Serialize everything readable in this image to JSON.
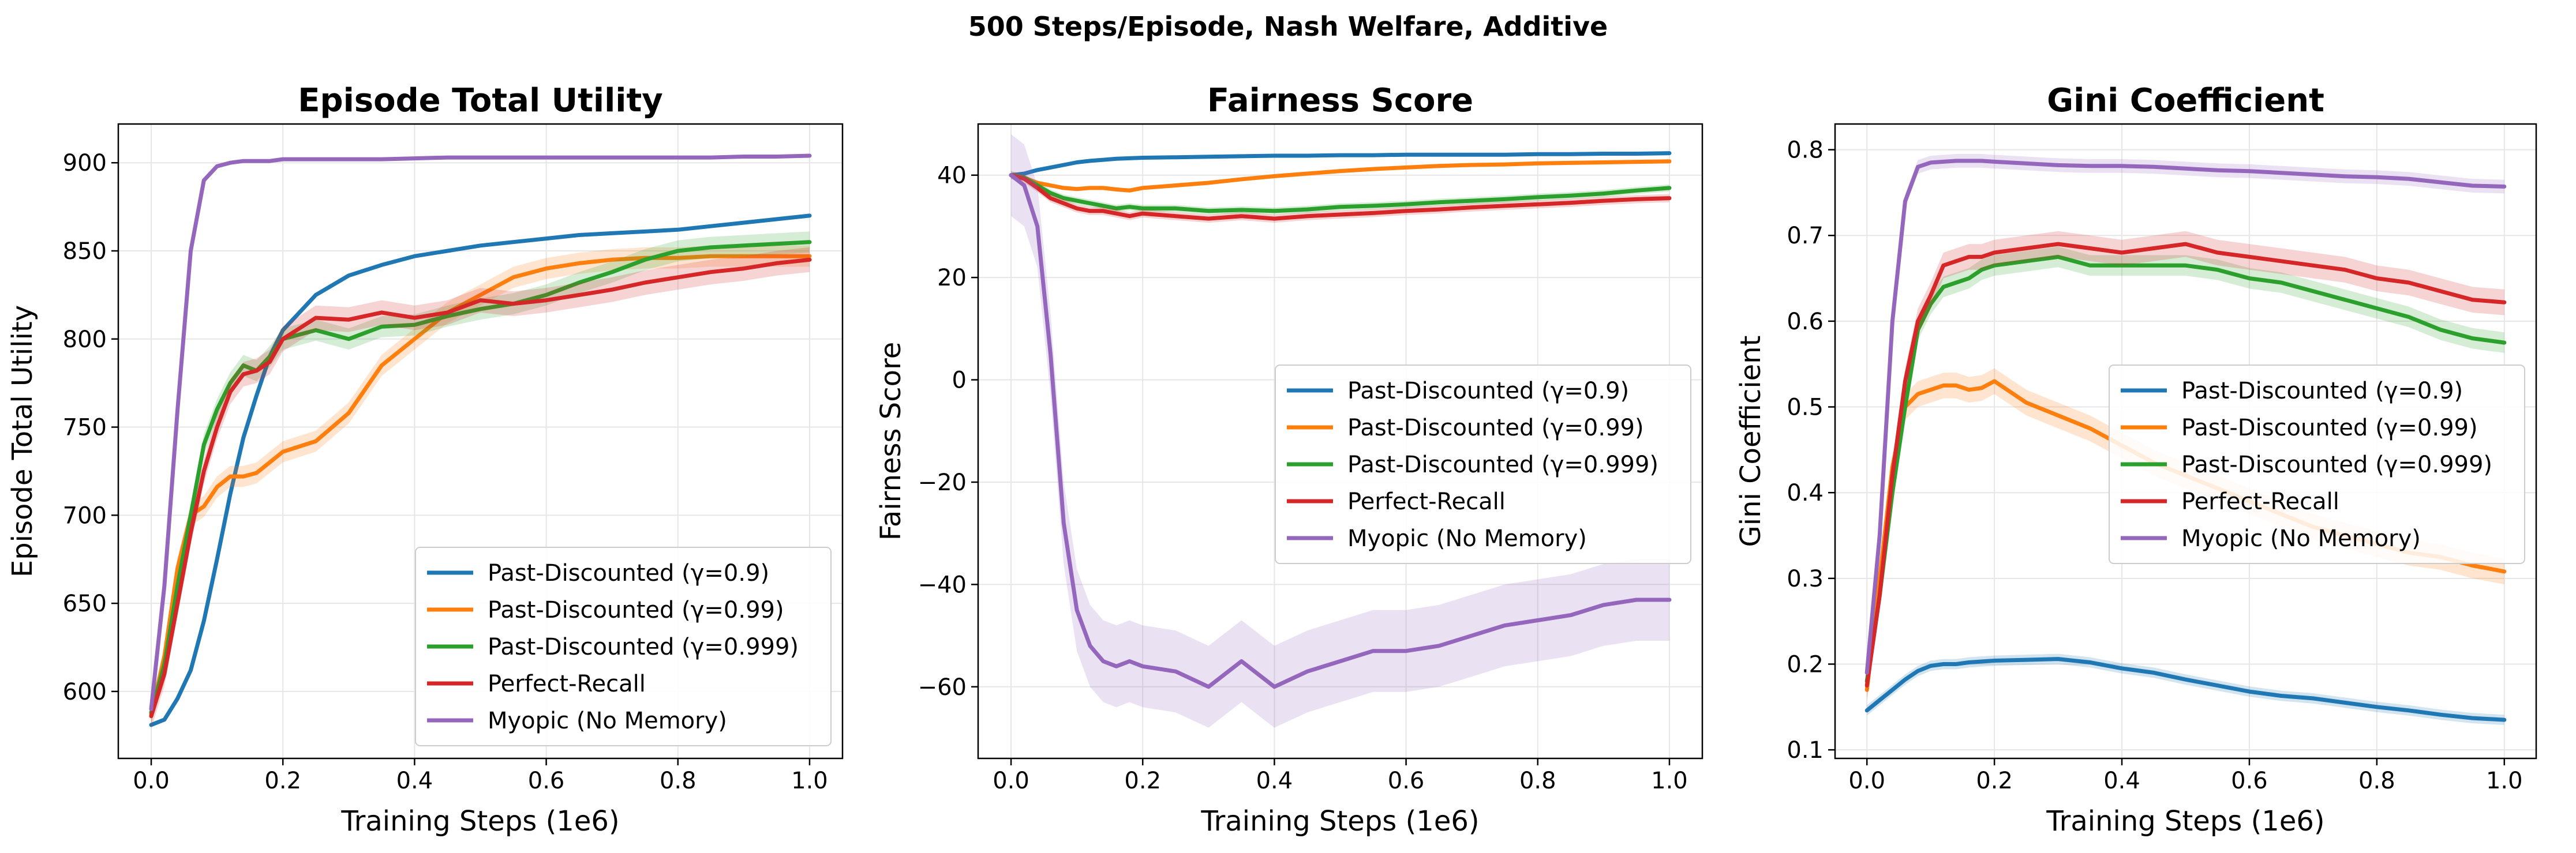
{
  "figure_title": "500 Steps/Episode, Nash Welfare, Additive",
  "series_colors": {
    "gamma_0.9": "#1f77b4",
    "gamma_0.99": "#ff7f0e",
    "gamma_0.999": "#2ca02c",
    "perfect_recall": "#d62728",
    "myopic": "#9467bd"
  },
  "chart_data": [
    {
      "type": "line",
      "title": "Episode Total Utility",
      "xlabel": "Training Steps (1e6)",
      "ylabel": "Episode Total Utility",
      "xlim": [
        -0.05,
        1.05
      ],
      "ylim": [
        562,
        922
      ],
      "xticks": [
        "0.0",
        "0.2",
        "0.4",
        "0.6",
        "0.8",
        "1.0"
      ],
      "yticks": [
        "600",
        "650",
        "700",
        "750",
        "800",
        "850",
        "900"
      ],
      "legend_position": "lower-right",
      "x": [
        0,
        0.02,
        0.04,
        0.06,
        0.08,
        0.1,
        0.12,
        0.14,
        0.16,
        0.18,
        0.2,
        0.25,
        0.3,
        0.35,
        0.4,
        0.45,
        0.5,
        0.55,
        0.6,
        0.65,
        0.7,
        0.75,
        0.8,
        0.85,
        0.9,
        0.95,
        1.0
      ],
      "series": [
        {
          "name": "Past-Discounted (γ=0.9)",
          "key": "gamma_0.9",
          "values": [
            581,
            584,
            596,
            612,
            640,
            675,
            712,
            744,
            768,
            790,
            805,
            825,
            836,
            842,
            847,
            850,
            853,
            855,
            857,
            859,
            860,
            861,
            862,
            864,
            866,
            868,
            870
          ],
          "band": 1
        },
        {
          "name": "Past-Discounted (γ=0.99)",
          "key": "gamma_0.99",
          "values": [
            587,
            620,
            670,
            700,
            705,
            716,
            722,
            722,
            724,
            730,
            736,
            742,
            758,
            785,
            800,
            815,
            825,
            835,
            840,
            843,
            845,
            846,
            846,
            847,
            847,
            847,
            847
          ],
          "band": 6
        },
        {
          "name": "Past-Discounted (γ=0.999)",
          "key": "gamma_0.999",
          "values": [
            588,
            615,
            660,
            700,
            740,
            760,
            775,
            785,
            782,
            790,
            800,
            805,
            800,
            807,
            808,
            813,
            817,
            820,
            825,
            832,
            838,
            845,
            850,
            852,
            853,
            854,
            855
          ],
          "band": 6
        },
        {
          "name": "Perfect-Recall",
          "key": "perfect_recall",
          "values": [
            586,
            610,
            650,
            690,
            725,
            750,
            770,
            780,
            782,
            787,
            800,
            812,
            811,
            815,
            812,
            815,
            822,
            820,
            822,
            825,
            828,
            832,
            835,
            838,
            840,
            843,
            845
          ],
          "band": 7
        },
        {
          "name": "Myopic (No Memory)",
          "key": "myopic",
          "values": [
            590,
            660,
            760,
            850,
            890,
            898,
            900,
            901,
            901,
            901,
            902,
            902,
            902,
            902,
            902.5,
            903,
            903,
            903,
            903,
            903,
            903,
            903,
            903,
            903,
            903.5,
            903.5,
            904
          ],
          "band": 1
        }
      ]
    },
    {
      "type": "line",
      "title": "Fairness Score",
      "xlabel": "Training Steps (1e6)",
      "ylabel": "Fairness Score",
      "xlim": [
        -0.05,
        1.05
      ],
      "ylim": [
        -74,
        50
      ],
      "xticks": [
        "0.0",
        "0.2",
        "0.4",
        "0.6",
        "0.8",
        "1.0"
      ],
      "yticks": [
        "−60",
        "−40",
        "−20",
        "0",
        "20",
        "40"
      ],
      "legend_position": "center-right",
      "x": [
        0,
        0.02,
        0.04,
        0.06,
        0.08,
        0.1,
        0.12,
        0.14,
        0.16,
        0.18,
        0.2,
        0.25,
        0.3,
        0.35,
        0.4,
        0.45,
        0.5,
        0.55,
        0.6,
        0.65,
        0.7,
        0.75,
        0.8,
        0.85,
        0.9,
        0.95,
        1.0
      ],
      "series": [
        {
          "name": "Past-Discounted (γ=0.9)",
          "key": "gamma_0.9",
          "values": [
            40,
            40.3,
            41,
            41.5,
            42,
            42.5,
            42.8,
            43,
            43.2,
            43.3,
            43.4,
            43.5,
            43.6,
            43.7,
            43.8,
            43.8,
            43.9,
            43.9,
            44,
            44,
            44,
            44,
            44.1,
            44.1,
            44.2,
            44.2,
            44.3
          ],
          "band": 0.3
        },
        {
          "name": "Past-Discounted (γ=0.99)",
          "key": "gamma_0.99",
          "values": [
            40,
            39.5,
            38.5,
            38,
            37.5,
            37.3,
            37.5,
            37.5,
            37.2,
            37,
            37.5,
            38,
            38.5,
            39.2,
            39.8,
            40.3,
            40.8,
            41.2,
            41.5,
            41.8,
            42,
            42.1,
            42.3,
            42.4,
            42.5,
            42.6,
            42.7
          ],
          "band": 0.4
        },
        {
          "name": "Past-Discounted (γ=0.999)",
          "key": "gamma_0.999",
          "values": [
            40,
            39.5,
            38,
            36.5,
            35.5,
            35,
            34.5,
            34,
            33.5,
            33.8,
            33.5,
            33.5,
            33,
            33.2,
            33,
            33.3,
            33.8,
            34,
            34.3,
            34.7,
            35,
            35.3,
            35.7,
            36,
            36.4,
            37,
            37.5
          ],
          "band": 0.7
        },
        {
          "name": "Perfect-Recall",
          "key": "perfect_recall",
          "values": [
            40,
            39.3,
            37.5,
            35.5,
            34.5,
            33.5,
            33,
            33,
            32.5,
            32,
            32.5,
            32,
            31.5,
            32,
            31.5,
            32,
            32.3,
            32.6,
            33,
            33.3,
            33.7,
            34,
            34.3,
            34.6,
            35,
            35.3,
            35.5
          ],
          "band": 0.8
        },
        {
          "name": "Myopic (No Memory)",
          "key": "myopic",
          "values": [
            40,
            38,
            30,
            5,
            -28,
            -45,
            -52,
            -55,
            -56,
            -55,
            -56,
            -57,
            -60,
            -55,
            -60,
            -57,
            -55,
            -53,
            -53,
            -52,
            -50,
            -48,
            -47,
            -46,
            -44,
            -43,
            -43
          ],
          "band": 8
        }
      ]
    },
    {
      "type": "line",
      "title": "Gini Coefficient",
      "xlabel": "Training Steps (1e6)",
      "ylabel": "Gini Coefficient",
      "xlim": [
        -0.05,
        1.05
      ],
      "ylim": [
        0.09,
        0.83
      ],
      "xticks": [
        "0.0",
        "0.2",
        "0.4",
        "0.6",
        "0.8",
        "1.0"
      ],
      "yticks": [
        "0.1",
        "0.2",
        "0.3",
        "0.4",
        "0.5",
        "0.6",
        "0.7",
        "0.8"
      ],
      "legend_position": "center-right",
      "x": [
        0,
        0.02,
        0.04,
        0.06,
        0.08,
        0.1,
        0.12,
        0.14,
        0.16,
        0.18,
        0.2,
        0.25,
        0.3,
        0.35,
        0.4,
        0.45,
        0.5,
        0.55,
        0.6,
        0.65,
        0.7,
        0.75,
        0.8,
        0.85,
        0.9,
        0.95,
        1.0
      ],
      "series": [
        {
          "name": "Past-Discounted (γ=0.9)",
          "key": "gamma_0.9",
          "values": [
            0.146,
            0.158,
            0.17,
            0.182,
            0.192,
            0.198,
            0.2,
            0.2,
            0.202,
            0.203,
            0.204,
            0.205,
            0.206,
            0.202,
            0.195,
            0.19,
            0.182,
            0.175,
            0.168,
            0.163,
            0.16,
            0.155,
            0.15,
            0.146,
            0.141,
            0.137,
            0.135
          ],
          "band": 0.006
        },
        {
          "name": "Past-Discounted (γ=0.99)",
          "key": "gamma_0.99",
          "values": [
            0.17,
            0.3,
            0.43,
            0.5,
            0.515,
            0.52,
            0.525,
            0.525,
            0.52,
            0.522,
            0.53,
            0.505,
            0.49,
            0.475,
            0.455,
            0.435,
            0.42,
            0.405,
            0.39,
            0.375,
            0.36,
            0.35,
            0.34,
            0.33,
            0.325,
            0.315,
            0.308
          ],
          "band": 0.015
        },
        {
          "name": "Past-Discounted (γ=0.999)",
          "key": "gamma_0.999",
          "values": [
            0.18,
            0.28,
            0.4,
            0.5,
            0.59,
            0.62,
            0.64,
            0.645,
            0.65,
            0.66,
            0.665,
            0.67,
            0.675,
            0.665,
            0.665,
            0.665,
            0.665,
            0.66,
            0.65,
            0.645,
            0.635,
            0.625,
            0.615,
            0.605,
            0.59,
            0.58,
            0.575
          ],
          "band": 0.012
        },
        {
          "name": "Perfect-Recall",
          "key": "perfect_recall",
          "values": [
            0.175,
            0.28,
            0.42,
            0.53,
            0.6,
            0.63,
            0.665,
            0.67,
            0.675,
            0.675,
            0.68,
            0.685,
            0.69,
            0.685,
            0.68,
            0.685,
            0.69,
            0.68,
            0.675,
            0.67,
            0.665,
            0.66,
            0.65,
            0.645,
            0.635,
            0.625,
            0.622
          ],
          "band": 0.015
        },
        {
          "name": "Myopic (No Memory)",
          "key": "myopic",
          "values": [
            0.19,
            0.35,
            0.6,
            0.74,
            0.78,
            0.785,
            0.786,
            0.787,
            0.787,
            0.787,
            0.786,
            0.784,
            0.782,
            0.781,
            0.781,
            0.78,
            0.778,
            0.776,
            0.775,
            0.773,
            0.771,
            0.769,
            0.768,
            0.766,
            0.762,
            0.758,
            0.757
          ],
          "band": 0.008
        }
      ]
    }
  ]
}
